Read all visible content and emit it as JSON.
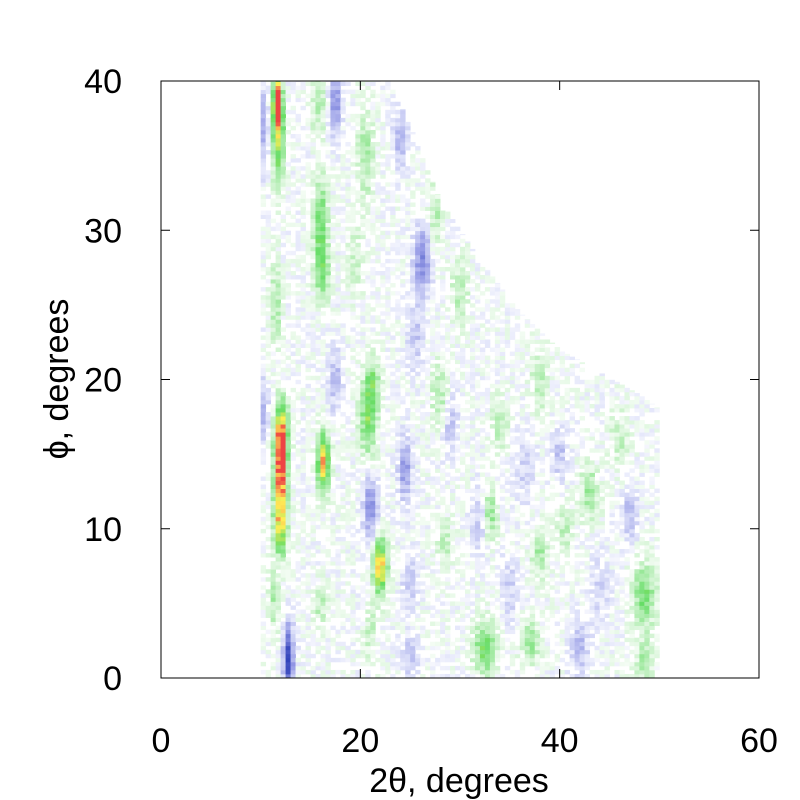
{
  "chart_data": {
    "type": "heatmap",
    "xlabel": "2θ, degrees",
    "ylabel": "ϕ, degrees",
    "xlim": [
      0,
      60
    ],
    "ylim": [
      0,
      40
    ],
    "x_ticks": [
      "0",
      "20",
      "40",
      "60"
    ],
    "y_ticks": [
      "0",
      "10",
      "20",
      "30",
      "40"
    ],
    "x_tick_values": [
      0,
      20,
      40,
      60
    ],
    "y_tick_values": [
      0,
      10,
      20,
      30,
      40
    ],
    "grid": false,
    "legend": "none",
    "data_extent": {
      "x_min": 10,
      "x_max": 50,
      "boundary": [
        [
          10,
          40
        ],
        [
          23,
          40
        ],
        [
          25,
          37
        ],
        [
          28,
          32
        ],
        [
          32,
          28
        ],
        [
          36,
          24.5
        ],
        [
          40,
          22
        ],
        [
          44,
          20.5
        ],
        [
          48,
          19
        ],
        [
          50,
          18
        ],
        [
          50,
          0
        ],
        [
          10,
          0
        ]
      ]
    },
    "colormap": [
      "#3344bb",
      "#ccccff",
      "#ffffff",
      "#66dd66",
      "#ffee55",
      "#ee4444"
    ],
    "features": [
      {
        "x": 11.7,
        "y": 38.5,
        "sx": 0.35,
        "sy": 1.4,
        "v": 1.0
      },
      {
        "x": 11.8,
        "y": 35.5,
        "sx": 0.45,
        "sy": 2.0,
        "v": 0.5
      },
      {
        "x": 12.0,
        "y": 13.5,
        "sx": 0.45,
        "sy": 2.2,
        "v": 1.0
      },
      {
        "x": 12.1,
        "y": 16.5,
        "sx": 0.5,
        "sy": 1.5,
        "v": 0.65
      },
      {
        "x": 12.0,
        "y": 10.0,
        "sx": 0.5,
        "sy": 1.3,
        "v": 0.55
      },
      {
        "x": 11.5,
        "y": 25.0,
        "sx": 0.4,
        "sy": 2.0,
        "v": 0.3
      },
      {
        "x": 11.3,
        "y": 5.0,
        "sx": 0.4,
        "sy": 1.5,
        "v": 0.25
      },
      {
        "x": 12.8,
        "y": 1.3,
        "sx": 0.35,
        "sy": 1.5,
        "v": -1.0
      },
      {
        "x": 10.2,
        "y": 37.0,
        "sx": 0.4,
        "sy": 2.0,
        "v": -0.35
      },
      {
        "x": 10.2,
        "y": 18.0,
        "sx": 0.4,
        "sy": 1.5,
        "v": -0.3
      },
      {
        "x": 16.3,
        "y": 14.5,
        "sx": 0.45,
        "sy": 1.4,
        "v": 0.85
      },
      {
        "x": 16.0,
        "y": 30.5,
        "sx": 0.5,
        "sy": 2.0,
        "v": 0.5
      },
      {
        "x": 16.2,
        "y": 27.0,
        "sx": 0.5,
        "sy": 1.3,
        "v": 0.4
      },
      {
        "x": 15.8,
        "y": 38.5,
        "sx": 0.5,
        "sy": 1.5,
        "v": 0.3
      },
      {
        "x": 16.0,
        "y": 5.0,
        "sx": 0.5,
        "sy": 1.0,
        "v": 0.25
      },
      {
        "x": 17.5,
        "y": 38.5,
        "sx": 0.4,
        "sy": 1.5,
        "v": -0.55
      },
      {
        "x": 17.5,
        "y": 20.0,
        "sx": 0.5,
        "sy": 1.5,
        "v": -0.3
      },
      {
        "x": 20.8,
        "y": 17.5,
        "sx": 0.6,
        "sy": 1.8,
        "v": 0.55
      },
      {
        "x": 21.3,
        "y": 20.0,
        "sx": 0.5,
        "sy": 1.0,
        "v": 0.35
      },
      {
        "x": 22.0,
        "y": 7.5,
        "sx": 0.5,
        "sy": 1.3,
        "v": 0.85
      },
      {
        "x": 21.0,
        "y": 11.5,
        "sx": 0.5,
        "sy": 1.5,
        "v": -0.5
      },
      {
        "x": 20.5,
        "y": 35.0,
        "sx": 0.6,
        "sy": 2.0,
        "v": 0.3
      },
      {
        "x": 19.5,
        "y": 28.0,
        "sx": 0.6,
        "sy": 1.5,
        "v": 0.2
      },
      {
        "x": 21.0,
        "y": 3.0,
        "sx": 0.5,
        "sy": 1.2,
        "v": 0.2
      },
      {
        "x": 24.0,
        "y": 36.0,
        "sx": 0.5,
        "sy": 1.5,
        "v": -0.3
      },
      {
        "x": 24.5,
        "y": 14.0,
        "sx": 0.5,
        "sy": 1.5,
        "v": -0.45
      },
      {
        "x": 25.5,
        "y": 23.0,
        "sx": 0.6,
        "sy": 1.5,
        "v": -0.25
      },
      {
        "x": 25.0,
        "y": 6.5,
        "sx": 0.6,
        "sy": 1.2,
        "v": -0.25
      },
      {
        "x": 25.0,
        "y": 1.5,
        "sx": 0.6,
        "sy": 1.0,
        "v": -0.25
      },
      {
        "x": 26.2,
        "y": 28.0,
        "sx": 0.6,
        "sy": 1.5,
        "v": -0.55
      },
      {
        "x": 27.5,
        "y": 31.0,
        "sx": 0.5,
        "sy": 1.5,
        "v": 0.25
      },
      {
        "x": 28.0,
        "y": 19.0,
        "sx": 0.6,
        "sy": 1.5,
        "v": 0.3
      },
      {
        "x": 28.5,
        "y": 9.0,
        "sx": 0.6,
        "sy": 1.2,
        "v": 0.2
      },
      {
        "x": 29.0,
        "y": 17.0,
        "sx": 0.6,
        "sy": 1.5,
        "v": -0.25
      },
      {
        "x": 30.0,
        "y": 26.0,
        "sx": 0.6,
        "sy": 1.5,
        "v": 0.25
      },
      {
        "x": 32.0,
        "y": 10.5,
        "sx": 0.6,
        "sy": 1.5,
        "v": -0.25
      },
      {
        "x": 32.5,
        "y": 2.0,
        "sx": 0.8,
        "sy": 1.2,
        "v": 0.5
      },
      {
        "x": 33.0,
        "y": 11.0,
        "sx": 0.5,
        "sy": 1.2,
        "v": 0.4
      },
      {
        "x": 34.0,
        "y": 17.0,
        "sx": 0.6,
        "sy": 1.2,
        "v": 0.25
      },
      {
        "x": 35.0,
        "y": 6.0,
        "sx": 0.6,
        "sy": 1.5,
        "v": -0.2
      },
      {
        "x": 36.5,
        "y": 14.0,
        "sx": 0.7,
        "sy": 1.5,
        "v": -0.2
      },
      {
        "x": 37.0,
        "y": 2.5,
        "sx": 0.7,
        "sy": 1.0,
        "v": 0.35
      },
      {
        "x": 38.0,
        "y": 20.0,
        "sx": 0.6,
        "sy": 1.5,
        "v": 0.25
      },
      {
        "x": 38.0,
        "y": 8.5,
        "sx": 0.6,
        "sy": 1.2,
        "v": 0.3
      },
      {
        "x": 40.0,
        "y": 15.0,
        "sx": 0.6,
        "sy": 1.2,
        "v": -0.25
      },
      {
        "x": 40.5,
        "y": 10.0,
        "sx": 0.6,
        "sy": 1.2,
        "v": 0.2
      },
      {
        "x": 42.0,
        "y": 2.0,
        "sx": 0.7,
        "sy": 1.2,
        "v": -0.3
      },
      {
        "x": 43.0,
        "y": 12.5,
        "sx": 0.7,
        "sy": 1.3,
        "v": 0.3
      },
      {
        "x": 44.0,
        "y": 6.0,
        "sx": 0.7,
        "sy": 1.5,
        "v": -0.2
      },
      {
        "x": 46.0,
        "y": 16.0,
        "sx": 0.7,
        "sy": 1.5,
        "v": 0.2
      },
      {
        "x": 47.0,
        "y": 11.0,
        "sx": 0.6,
        "sy": 1.2,
        "v": -0.3
      },
      {
        "x": 48.5,
        "y": 5.5,
        "sx": 0.8,
        "sy": 1.5,
        "v": 0.45
      },
      {
        "x": 48.5,
        "y": 1.0,
        "sx": 0.7,
        "sy": 1.0,
        "v": 0.3
      }
    ]
  }
}
